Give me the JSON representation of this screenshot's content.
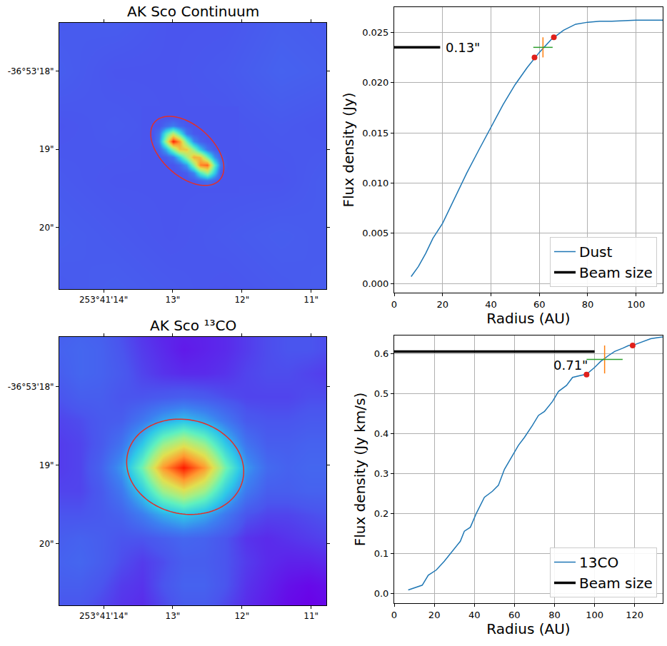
{
  "chart_data": [
    {
      "type": "heatmap",
      "title": "AK Sco Continuum",
      "xlim": [
        14.64,
        10.78
      ],
      "ylim": [
        20.79,
        17.38
      ],
      "zlim": [
        0,
        1
      ],
      "xticks": [
        {
          "value": 14,
          "label": "253°41'14\""
        },
        {
          "value": 13,
          "label": "13\""
        },
        {
          "value": 12,
          "label": "12\""
        },
        {
          "value": 11,
          "label": "11\""
        }
      ],
      "yticks": [
        {
          "value": 18,
          "label": "-36°53'18\""
        },
        {
          "value": 19,
          "label": "19\""
        },
        {
          "value": 20,
          "label": "20\""
        }
      ],
      "layers": [
        {
          "x": [
            14.64,
            13.84,
            13.04,
            12.24,
            11.44,
            10.64
          ],
          "y": [
            17.3,
            18.0,
            18.7,
            19.4,
            20.1,
            20.8
          ],
          "cells": [
            [
              0.11,
              0.12,
              0.1,
              0.1,
              0.12,
              0.11
            ],
            [
              0.12,
              0.1,
              0.1,
              0.11,
              0.13,
              0.12
            ],
            [
              0.1,
              0.11,
              0.1,
              0.1,
              0.11,
              0.1
            ],
            [
              0.11,
              0.1,
              0.1,
              0.1,
              0.1,
              0.12
            ],
            [
              0.12,
              0.11,
              0.1,
              0.11,
              0.12,
              0.11
            ],
            [
              0.11,
              0.12,
              0.11,
              0.1,
              0.11,
              0.12
            ]
          ]
        },
        {
          "x": [
            13.4,
            13.3,
            13.2,
            13.1,
            13.0,
            12.9,
            12.8,
            12.7,
            12.6,
            12.5,
            12.4,
            12.3,
            12.2,
            12.1
          ],
          "y": [
            18.5,
            18.6,
            18.7,
            18.8,
            18.9,
            19.0,
            19.1,
            19.2,
            19.3,
            19.4,
            19.5
          ],
          "cells": [
            [
              0.1,
              0.1,
              0.1,
              0.1,
              0.1,
              0.1,
              0.1,
              0.1,
              0.1,
              0.1,
              0.1,
              0.1,
              0.1,
              0.1
            ],
            [
              0.1,
              0.1,
              0.1,
              0.1,
              0.1,
              0.1,
              0.1,
              0.1,
              0.1,
              0.1,
              0.1,
              0.1,
              0.1,
              0.1
            ],
            [
              0.1,
              0.1,
              0.1,
              0.15,
              0.19,
              0.14,
              0.11,
              0.1,
              0.1,
              0.1,
              0.1,
              0.1,
              0.1,
              0.1
            ],
            [
              0.1,
              0.1,
              0.16,
              0.43,
              0.61,
              0.42,
              0.18,
              0.11,
              0.1,
              0.1,
              0.1,
              0.1,
              0.1,
              0.1
            ],
            [
              0.1,
              0.1,
              0.19,
              0.58,
              0.99,
              0.82,
              0.47,
              0.22,
              0.13,
              0.1,
              0.1,
              0.1,
              0.1,
              0.1
            ],
            [
              0.1,
              0.1,
              0.13,
              0.28,
              0.53,
              0.74,
              0.73,
              0.52,
              0.32,
              0.17,
              0.11,
              0.1,
              0.1,
              0.1
            ],
            [
              0.1,
              0.1,
              0.1,
              0.12,
              0.18,
              0.34,
              0.55,
              0.78,
              0.75,
              0.49,
              0.23,
              0.12,
              0.1,
              0.1
            ],
            [
              0.1,
              0.1,
              0.1,
              0.1,
              0.1,
              0.14,
              0.25,
              0.53,
              0.85,
              0.89,
              0.45,
              0.16,
              0.1,
              0.1
            ],
            [
              0.1,
              0.1,
              0.1,
              0.1,
              0.1,
              0.1,
              0.12,
              0.21,
              0.42,
              0.56,
              0.33,
              0.1,
              0.1,
              0.1
            ],
            [
              0.1,
              0.1,
              0.1,
              0.1,
              0.1,
              0.1,
              0.1,
              0.11,
              0.14,
              0.17,
              0.13,
              0.1,
              0.1,
              0.1
            ],
            [
              0.1,
              0.1,
              0.1,
              0.1,
              0.1,
              0.1,
              0.1,
              0.1,
              0.1,
              0.1,
              0.1,
              0.1,
              0.1,
              0.1
            ]
          ]
        }
      ],
      "aperture": {
        "center": [
          12.79,
          19.02
        ],
        "semi_axes": [
          0.6,
          0.34
        ],
        "angle": 145,
        "color": "#e0302a"
      }
    },
    {
      "type": "line",
      "x_label": "Radius (AU)",
      "y_label": "Flux density (Jy)",
      "xlim": [
        0,
        111
      ],
      "ylim": [
        -0.0009,
        0.0275
      ],
      "xticks": [
        0,
        20,
        40,
        60,
        80,
        100
      ],
      "yticks": [
        {
          "value": 0,
          "label": "0.000"
        },
        0.005,
        {
          "value": 0.01,
          "label": "0.010"
        },
        0.015,
        {
          "value": 0.02,
          "label": "0.020"
        },
        0.025
      ],
      "grid": true,
      "legend": "lower right",
      "series": [
        {
          "name": "Dust",
          "color": "#1f77b4",
          "line_style": "solid",
          "x": [
            7,
            10,
            13,
            16,
            20,
            25,
            30,
            35,
            40,
            45,
            50,
            55,
            60,
            65,
            70,
            75,
            80,
            85,
            90,
            100,
            111
          ],
          "values": [
            0.0007,
            0.0017,
            0.003,
            0.0045,
            0.006,
            0.0085,
            0.011,
            0.0133,
            0.0155,
            0.0178,
            0.0198,
            0.0215,
            0.023,
            0.0243,
            0.0252,
            0.0258,
            0.026,
            0.0261,
            0.0261,
            0.0262,
            0.0262
          ]
        },
        {
          "name": "Beam size",
          "color": "#000000",
          "line_style": "thick",
          "x": [
            0,
            19
          ],
          "values": [
            0.0235,
            0.0235
          ]
        }
      ],
      "points": {
        "color": "#e0201b",
        "x": [
          58,
          66
        ],
        "values": [
          0.0225,
          0.0245
        ]
      },
      "error_bars": {
        "x": 61.5,
        "y": 0.0235,
        "x_error": 4,
        "y_error": 0.001,
        "colors": [
          "#2ca02c",
          "#ff7f0e"
        ]
      },
      "annotations": [
        {
          "text": "0.13\"",
          "x": 20,
          "y": 0.0235
        }
      ]
    },
    {
      "type": "heatmap",
      "title": "AK Sco ¹³CO",
      "xlim": [
        14.64,
        10.78
      ],
      "ylim": [
        20.78,
        17.37
      ],
      "zlim": [
        0,
        1
      ],
      "xticks": [
        {
          "value": 14,
          "label": "253°41'14\""
        },
        {
          "value": 13,
          "label": "13\""
        },
        {
          "value": 12,
          "label": "12\""
        },
        {
          "value": 11,
          "label": "11\""
        }
      ],
      "yticks": [
        {
          "value": 18,
          "label": "-36°53'18\""
        },
        {
          "value": 19,
          "label": "19\""
        },
        {
          "value": 20,
          "label": "20\""
        }
      ],
      "layers": [
        {
          "x": [
            14.64,
            14.34,
            14.04,
            13.74,
            13.44,
            13.14,
            12.84,
            12.54,
            12.24,
            11.94,
            11.64,
            11.34,
            11.04,
            10.74
          ],
          "y": [
            17.23,
            17.53,
            17.83,
            18.13,
            18.43,
            18.73,
            19.03,
            19.33,
            19.63,
            19.93,
            20.23,
            20.53,
            20.83
          ],
          "cells": [
            [
              0.12,
              0.13,
              0.12,
              0.09,
              0.06,
              0.04,
              0.04,
              0.04,
              0.05,
              0.07,
              0.09,
              0.1,
              0.1,
              0.09
            ],
            [
              0.13,
              0.14,
              0.13,
              0.1,
              0.07,
              0.05,
              0.03,
              0.04,
              0.05,
              0.07,
              0.09,
              0.1,
              0.1,
              0.09
            ],
            [
              0.12,
              0.14,
              0.13,
              0.11,
              0.08,
              0.06,
              0.05,
              0.05,
              0.06,
              0.08,
              0.09,
              0.09,
              0.08,
              0.07
            ],
            [
              0.1,
              0.12,
              0.12,
              0.1,
              0.1,
              0.11,
              0.12,
              0.11,
              0.09,
              0.08,
              0.08,
              0.08,
              0.09,
              0.09
            ],
            [
              0.08,
              0.09,
              0.11,
              0.12,
              0.18,
              0.26,
              0.31,
              0.26,
              0.18,
              0.11,
              0.1,
              0.1,
              0.11,
              0.11
            ],
            [
              0.07,
              0.08,
              0.11,
              0.17,
              0.32,
              0.54,
              0.65,
              0.54,
              0.32,
              0.17,
              0.12,
              0.12,
              0.13,
              0.13
            ],
            [
              0.07,
              0.08,
              0.13,
              0.24,
              0.48,
              0.82,
              1.0,
              0.82,
              0.48,
              0.24,
              0.15,
              0.13,
              0.14,
              0.14
            ],
            [
              0.08,
              0.08,
              0.11,
              0.18,
              0.33,
              0.55,
              0.66,
              0.55,
              0.33,
              0.18,
              0.12,
              0.12,
              0.13,
              0.13
            ],
            [
              0.1,
              0.1,
              0.11,
              0.13,
              0.19,
              0.27,
              0.32,
              0.27,
              0.18,
              0.1,
              0.08,
              0.08,
              0.09,
              0.1
            ],
            [
              0.12,
              0.13,
              0.12,
              0.1,
              0.1,
              0.12,
              0.14,
              0.13,
              0.1,
              0.06,
              0.05,
              0.06,
              0.07,
              0.08
            ],
            [
              0.13,
              0.14,
              0.12,
              0.09,
              0.07,
              0.09,
              0.12,
              0.12,
              0.1,
              0.07,
              0.05,
              0.04,
              0.04,
              0.05
            ],
            [
              0.12,
              0.12,
              0.1,
              0.07,
              0.06,
              0.1,
              0.13,
              0.13,
              0.1,
              0.06,
              0.04,
              0.02,
              0.01,
              0.02
            ],
            [
              0.1,
              0.1,
              0.08,
              0.06,
              0.05,
              0.08,
              0.11,
              0.11,
              0.08,
              0.05,
              0.03,
              0.01,
              0.0,
              0.01
            ]
          ]
        }
      ],
      "aperture": {
        "center": [
          12.82,
          19.02
        ],
        "semi_axes": [
          0.85,
          0.6
        ],
        "angle": 172,
        "color": "#e0302a"
      }
    },
    {
      "type": "line",
      "x_label": "Radius (AU)",
      "y_label": "Flux density (Jy km/s)",
      "xlim": [
        0,
        134
      ],
      "ylim": [
        -0.025,
        0.645
      ],
      "xticks": [
        0,
        20,
        40,
        60,
        80,
        100,
        120
      ],
      "yticks": [
        {
          "value": 0,
          "label": "0.0"
        },
        0.1,
        0.2,
        0.3,
        0.4,
        0.5,
        0.6
      ],
      "grid": true,
      "legend": "lower right",
      "series": [
        {
          "name": "13CO",
          "color": "#1f77b4",
          "line_style": "solid",
          "x": [
            7,
            14,
            17,
            21,
            25,
            29,
            33,
            35,
            38,
            41,
            45,
            49,
            52,
            55,
            58,
            62,
            65,
            69,
            72,
            75,
            79,
            82,
            86,
            89,
            93,
            96,
            100,
            103,
            107,
            110,
            114,
            117,
            120,
            124,
            128,
            132,
            135
          ],
          "values": [
            0.008,
            0.02,
            0.045,
            0.058,
            0.08,
            0.105,
            0.13,
            0.155,
            0.165,
            0.2,
            0.24,
            0.255,
            0.27,
            0.31,
            0.335,
            0.37,
            0.39,
            0.42,
            0.445,
            0.455,
            0.48,
            0.505,
            0.52,
            0.54,
            0.545,
            0.548,
            0.565,
            0.58,
            0.595,
            0.605,
            0.613,
            0.62,
            0.622,
            0.63,
            0.637,
            0.64,
            0.642
          ]
        },
        {
          "name": "Beam size",
          "color": "#000000",
          "line_style": "thick",
          "x": [
            0,
            100
          ],
          "values": [
            0.605,
            0.605
          ]
        }
      ],
      "points": {
        "color": "#e0201b",
        "x": [
          96,
          119
        ],
        "values": [
          0.547,
          0.62
        ]
      },
      "error_bars": {
        "x": 105,
        "y": 0.585,
        "x_error": 9,
        "y_error": 0.035,
        "colors": [
          "#2ca02c",
          "#ff7f0e"
        ]
      },
      "annotations": [
        {
          "text": "0.71\"",
          "x": 78,
          "y": 0.57
        }
      ]
    }
  ]
}
